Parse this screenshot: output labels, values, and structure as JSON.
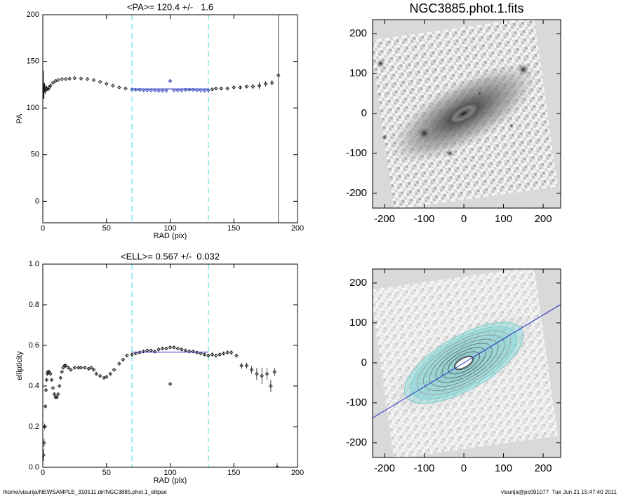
{
  "chart_data": [
    {
      "type": "scatter",
      "title": "<PA>= 120.4 +/-   1.6",
      "xlabel": "RAD (pix)",
      "ylabel": "PA",
      "xlim": [
        0,
        200
      ],
      "xticks": [
        0,
        50,
        100,
        150,
        200
      ],
      "ylim": [
        -23,
        200
      ],
      "yticks": [
        0,
        50,
        100,
        150,
        200
      ],
      "vlines": [
        70,
        130
      ],
      "vline_color": "#7fe5e5",
      "fit_line": {
        "x": [
          70,
          130
        ],
        "y": 120.4,
        "color": "#2030c0"
      },
      "series": [
        {
          "color": "#000000",
          "x": [
            0.5,
            1,
            1.5,
            2,
            3,
            4,
            5,
            6,
            8,
            10,
            12,
            15,
            18,
            21,
            25,
            30,
            35,
            40,
            45,
            50,
            55,
            60,
            65
          ],
          "values": [
            125,
            118,
            122,
            119,
            121,
            120,
            122,
            124,
            127,
            129,
            130,
            131,
            131,
            131.5,
            132,
            131.5,
            131,
            130,
            128,
            126,
            124,
            122,
            121
          ],
          "errors": [
            15,
            8,
            5,
            4,
            3,
            2,
            1.5,
            1,
            0.8,
            0.6,
            0.5,
            0.5,
            0.5,
            0.5,
            0.5,
            0.5,
            0.5,
            0.5,
            0.5,
            0.5,
            0.5,
            0.5,
            0.5
          ]
        },
        {
          "color": "#2030c0",
          "x": [
            70,
            73,
            76,
            79,
            82,
            85,
            88,
            91,
            94,
            97,
            100,
            103,
            106,
            109,
            112,
            115,
            118,
            121,
            124,
            127,
            130
          ],
          "values": [
            120,
            119.5,
            119.5,
            119,
            119,
            119,
            119,
            118.5,
            118.5,
            118.5,
            129,
            119,
            119,
            119,
            119.5,
            119.5,
            119.5,
            119,
            119,
            118.5,
            119
          ],
          "errors": [
            0.5,
            0.5,
            0.5,
            0.5,
            0.5,
            0.5,
            0.5,
            0.5,
            0.5,
            0.5,
            1,
            0.5,
            0.5,
            0.5,
            0.5,
            0.5,
            0.5,
            0.5,
            0.5,
            0.5,
            0.5
          ]
        },
        {
          "color": "#000000",
          "x": [
            133,
            136,
            140,
            145,
            150,
            155,
            160,
            165,
            170,
            175,
            180,
            185
          ],
          "values": [
            120,
            121,
            121,
            121,
            122,
            122,
            123,
            123,
            124,
            126,
            127,
            135
          ],
          "errors": [
            1,
            1,
            1,
            1,
            1,
            1.5,
            2,
            3,
            4,
            3,
            3,
            170
          ]
        }
      ]
    },
    {
      "type": "scatter",
      "title": "<ELL>= 0.567 +/-  0.032",
      "xlabel": "RAD (pix)",
      "ylabel": "ellipticity",
      "xlim": [
        0,
        200
      ],
      "xticks": [
        0,
        50,
        100,
        150,
        200
      ],
      "ylim": [
        0,
        1
      ],
      "yticks": [
        {
          "value": 0,
          "label": "0.0"
        },
        0.2,
        0.4,
        0.6,
        0.8,
        {
          "value": 1,
          "label": "1.0"
        }
      ],
      "vlines": [
        70,
        130
      ],
      "vline_color": "#7fe5e5",
      "fit_line": {
        "x": [
          70,
          130
        ],
        "y": 0.567,
        "color": "#2030c0"
      },
      "series": [
        {
          "color": "#000000",
          "x": [
            0.5,
            1,
            1.5,
            2,
            2.5,
            3,
            3.5,
            4,
            5,
            6,
            7,
            8,
            9,
            10,
            11,
            12,
            13,
            14,
            15,
            16,
            17,
            18,
            20,
            22,
            25,
            28,
            30,
            33,
            36,
            38,
            40,
            42,
            45,
            48,
            50,
            53,
            56,
            60,
            63,
            66
          ],
          "values": [
            0.06,
            0.12,
            0.2,
            0.3,
            0.38,
            0.43,
            0.46,
            0.47,
            0.47,
            0.46,
            0.43,
            0.39,
            0.36,
            0.345,
            0.345,
            0.36,
            0.4,
            0.44,
            0.47,
            0.49,
            0.5,
            0.5,
            0.49,
            0.48,
            0.49,
            0.49,
            0.49,
            0.49,
            0.485,
            0.49,
            0.48,
            0.46,
            0.45,
            0.44,
            0.445,
            0.46,
            0.48,
            0.51,
            0.53,
            0.55
          ],
          "errors": [
            0.03,
            0.02,
            0.015,
            0.01,
            0.01,
            0.008,
            0.006,
            0.005,
            0.005,
            0.005,
            0.005,
            0.005,
            0.005,
            0.005,
            0.005,
            0.005,
            0.005,
            0.005,
            0.005,
            0.005,
            0.005,
            0.005,
            0.005,
            0.005,
            0.005,
            0.005,
            0.005,
            0.005,
            0.005,
            0.005,
            0.005,
            0.005,
            0.005,
            0.005,
            0.005,
            0.005,
            0.005,
            0.005,
            0.005,
            0.005
          ]
        },
        {
          "color": "#000000",
          "x": [
            70,
            73,
            76,
            79,
            82,
            85,
            88,
            91,
            94,
            97,
            100,
            100,
            103,
            106,
            109,
            112,
            115,
            118,
            121,
            124,
            127
          ],
          "values": [
            0.555,
            0.56,
            0.565,
            0.57,
            0.575,
            0.575,
            0.57,
            0.58,
            0.585,
            0.585,
            0.59,
            0.41,
            0.59,
            0.585,
            0.58,
            0.575,
            0.57,
            0.57,
            0.565,
            0.56,
            0.555
          ],
          "errors": [
            0.005,
            0.005,
            0.005,
            0.005,
            0.005,
            0.005,
            0.005,
            0.005,
            0.005,
            0.005,
            0.005,
            0.005,
            0.005,
            0.005,
            0.005,
            0.005,
            0.005,
            0.005,
            0.005,
            0.005,
            0.005
          ]
        },
        {
          "color": "#000000",
          "x": [
            130,
            133,
            136,
            139,
            142,
            145,
            148,
            152,
            156,
            160,
            164,
            168,
            172,
            176,
            179,
            182,
            184
          ],
          "values": [
            0.55,
            0.555,
            0.55,
            0.555,
            0.56,
            0.565,
            0.565,
            0.55,
            0.5,
            0.5,
            0.48,
            0.46,
            0.45,
            0.46,
            0.4,
            0.47,
            0.0
          ],
          "errors": [
            0.01,
            0.01,
            0.01,
            0.01,
            0.01,
            0.01,
            0.01,
            0.01,
            0.015,
            0.015,
            0.02,
            0.03,
            0.04,
            0.03,
            0.03,
            0.02,
            0.02
          ]
        }
      ]
    },
    {
      "type": "image",
      "title": "NGC3885.phot.1.fits",
      "xlim": [
        -230,
        244
      ],
      "xticks": [
        -200,
        -100,
        0,
        100,
        200
      ],
      "ylim": [
        -237,
        235
      ],
      "yticks": [
        -200,
        -100,
        0,
        100,
        200
      ]
    },
    {
      "type": "image_contours",
      "xlim": [
        -230,
        244
      ],
      "xticks": [
        -200,
        -100,
        0,
        100,
        200
      ],
      "ylim": [
        -237,
        235
      ],
      "yticks": [
        -200,
        -100,
        0,
        100,
        200
      ]
    }
  ],
  "footer": {
    "left": "/home/visurija/NEWSAMPLE_310511.dir/NGC3885.phot.1_ellipse",
    "right": "visurija@pc091077  Tue Jun 21 15:47:40 2011"
  }
}
